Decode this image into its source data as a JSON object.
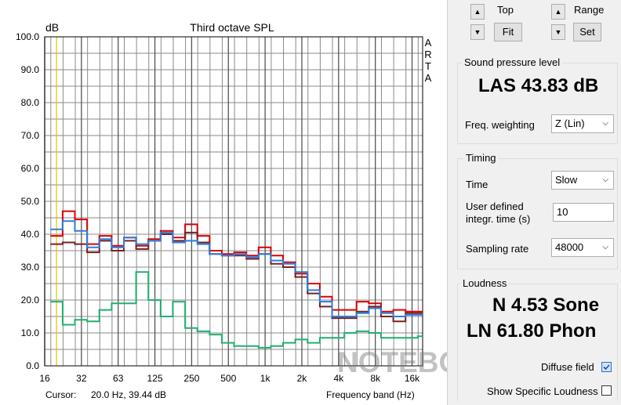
{
  "chart_data": {
    "type": "line",
    "title": "Third octave SPL",
    "ylabel": "dB",
    "xlabel": "Frequency band (Hz)",
    "side_label": "ARTA",
    "ylim": [
      0,
      100
    ],
    "y_ticks": [
      "100.0",
      "90.0",
      "80.0",
      "70.0",
      "60.0",
      "50.0",
      "40.0",
      "30.0",
      "20.0",
      "10.0",
      "0.0"
    ],
    "x_ticks": [
      "16",
      "32",
      "63",
      "125",
      "250",
      "500",
      "1k",
      "2k",
      "4k",
      "8k",
      "16k"
    ],
    "grid": true,
    "cursor_freq": 20.0,
    "bands": [
      "20",
      "25",
      "31.5",
      "40",
      "50",
      "63",
      "80",
      "100",
      "125",
      "160",
      "200",
      "250",
      "315",
      "400",
      "500",
      "630",
      "800",
      "1k",
      "1.25k",
      "1.6k",
      "2k",
      "2.5k",
      "3.15k",
      "4k",
      "5k",
      "6.3k",
      "8k",
      "10k",
      "12.5k",
      "16k",
      "20k"
    ],
    "series": [
      {
        "color": "#dd0000",
        "values": [
          39.5,
          47,
          44.5,
          37,
          39.5,
          36.5,
          39,
          36.5,
          38.5,
          41,
          39,
          43,
          39.5,
          35,
          34,
          34.5,
          33.5,
          36,
          33.5,
          31.5,
          28,
          25,
          21,
          17,
          17,
          19.5,
          19,
          16.5,
          17,
          16.5,
          16.5
        ]
      },
      {
        "color": "#7a2020",
        "values": [
          37,
          37.5,
          37,
          34.5,
          38,
          35,
          38,
          35.5,
          38,
          40,
          38,
          40.5,
          37.5,
          34,
          33.5,
          33.5,
          32.5,
          34,
          31,
          30,
          27,
          22,
          18,
          14.5,
          14.5,
          16.5,
          18,
          15,
          13.5,
          16,
          16
        ]
      },
      {
        "color": "#2a7fe0",
        "values": [
          41.5,
          44,
          41,
          36,
          38.5,
          36,
          39,
          37,
          38,
          40.5,
          37.5,
          38,
          37,
          34,
          33.5,
          34,
          33,
          34,
          32,
          31,
          28.5,
          23,
          19.5,
          15,
          15,
          16,
          17.5,
          16,
          15,
          15.5,
          15.5
        ]
      },
      {
        "color": "#20b070",
        "values": [
          19.5,
          12.5,
          14,
          13.5,
          17,
          19,
          19,
          28.5,
          20,
          15,
          19.5,
          11.5,
          10.5,
          9.5,
          7,
          6,
          6,
          5.5,
          6,
          7,
          8,
          7,
          8.5,
          8.5,
          10,
          10.5,
          10,
          8.5,
          8.5,
          8.5,
          9
        ]
      }
    ]
  },
  "cursor": {
    "label": "Cursor:",
    "value": "20.0 Hz, 39.44 dB"
  },
  "watermark": "NOTEBOOKCHECK",
  "panel": {
    "top_label": "Top",
    "range_label": "Range",
    "fit_button": "Fit",
    "set_button": "Set",
    "spl": {
      "title": "Sound pressure level",
      "value": "LAS 43.83 dB",
      "freq_weighting_label": "Freq. weighting",
      "freq_weighting_value": "Z (Lin)"
    },
    "timing": {
      "title": "Timing",
      "time_label": "Time",
      "time_value": "Slow",
      "user_label_line1": "User defined",
      "user_label_line2": "integr. time (s)",
      "user_value": "10",
      "sampling_label": "Sampling rate",
      "sampling_value": "48000"
    },
    "loudness": {
      "title": "Loudness",
      "n_value": "N 4.53 Sone",
      "ln_value": "LN 61.80 Phon",
      "diffuse_label": "Diffuse field",
      "show_specific_label": "Show Specific Loudness"
    }
  },
  "colors": {
    "cursor_line": "#e8c000",
    "grid": "#8a8a8a",
    "plot_bg": "#ffffff"
  }
}
